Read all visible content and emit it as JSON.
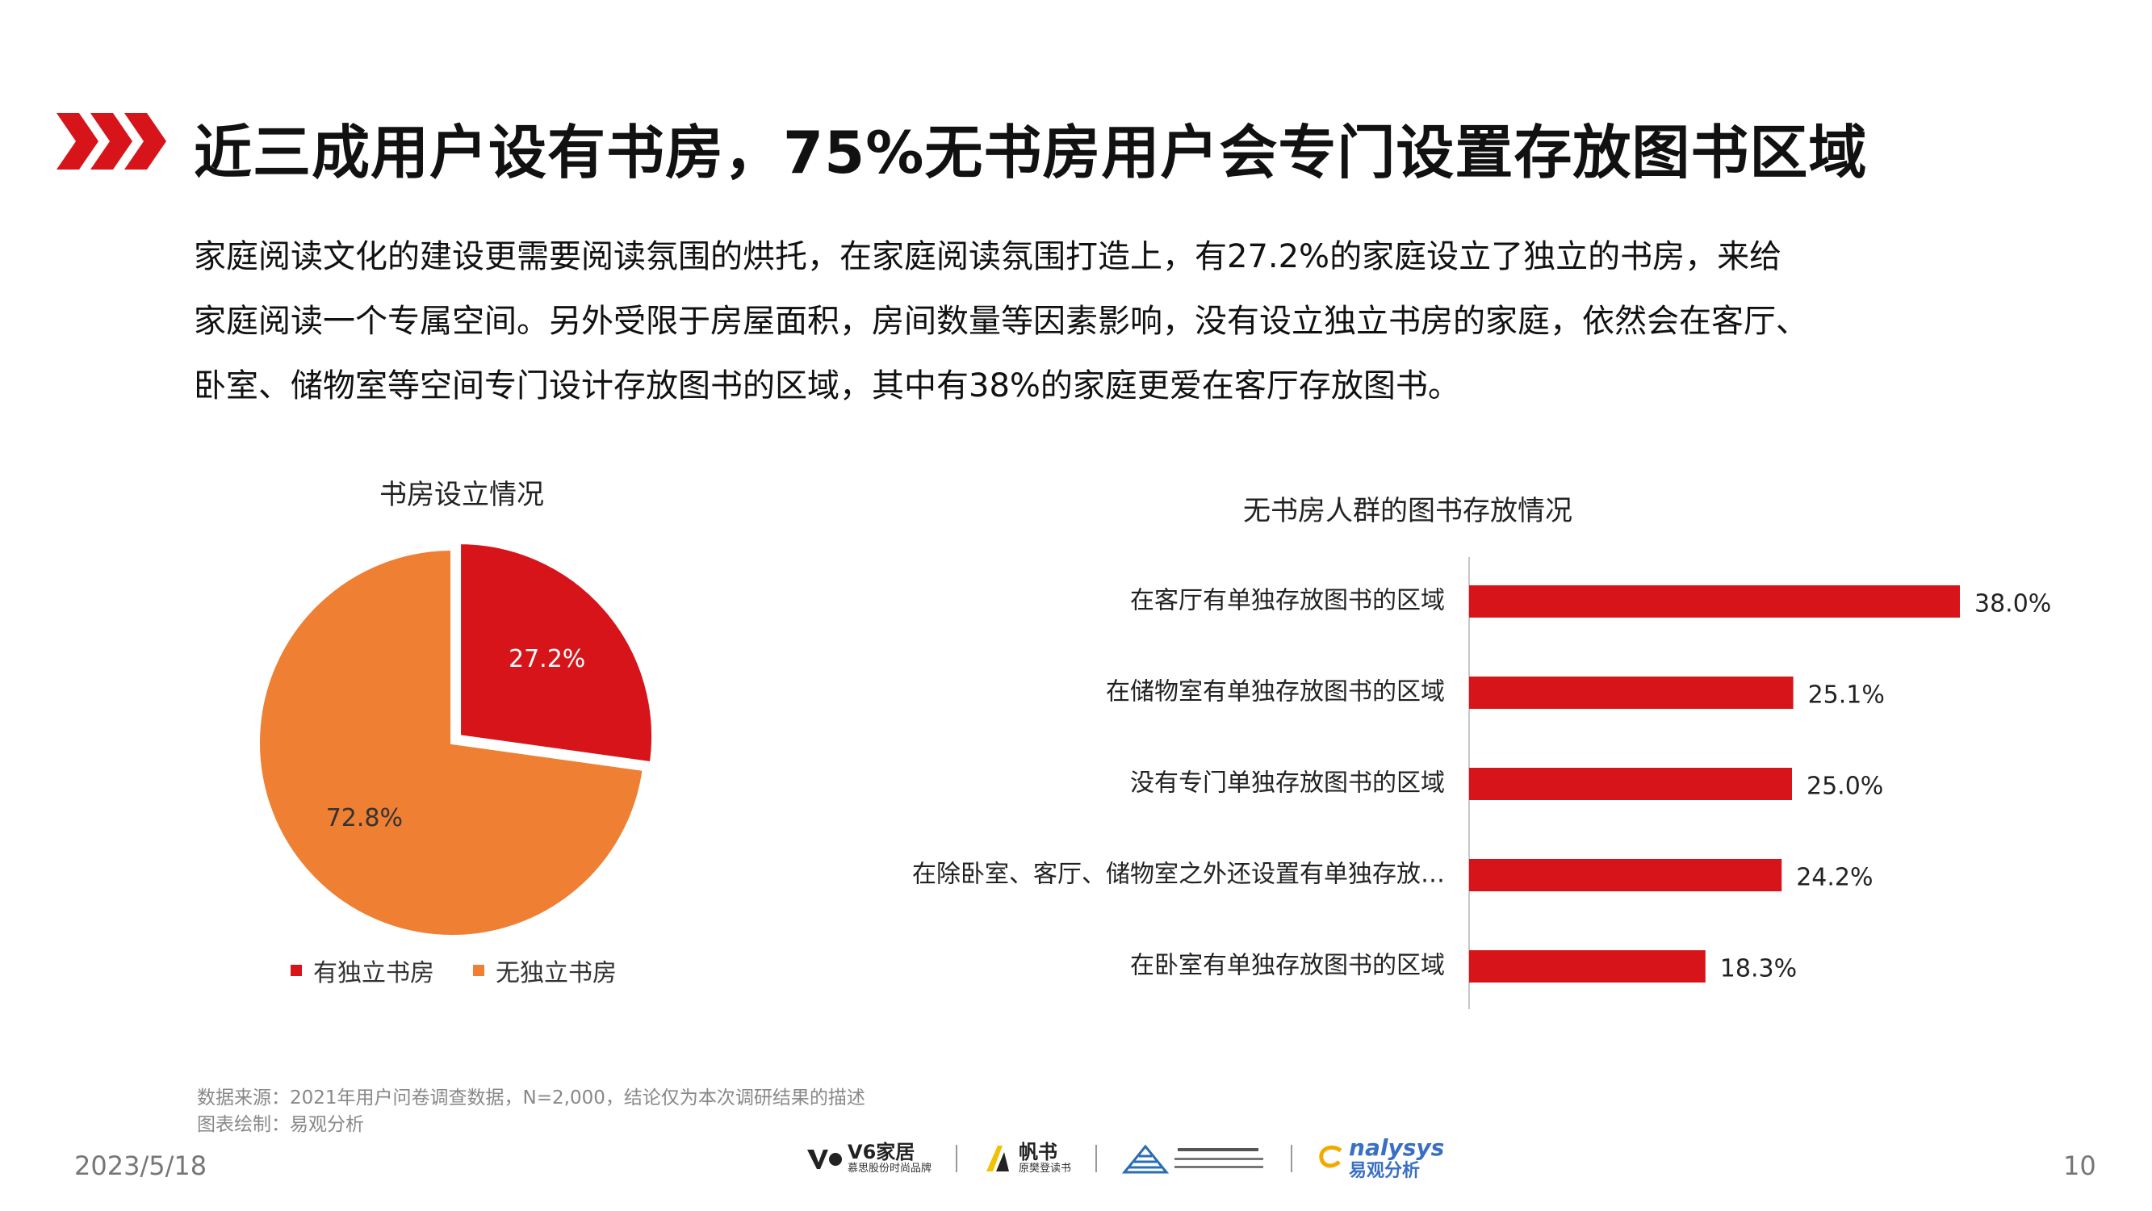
{
  "header": {
    "title": "近三成用户设有书房，75%无书房用户会专门设置存放图书区域",
    "accent_color": "#d7141a"
  },
  "intro": {
    "lines": [
      "家庭阅读文化的建设更需要阅读氛围的烘托，在家庭阅读氛围打造上，有27.2%的家庭设立了独立的书房，来给",
      "家庭阅读一个专属空间。另外受限于房屋面积，房间数量等因素影响，没有设立独立书房的家庭，依然会在客厅、",
      "卧室、储物室等空间专门设计存放图书的区域，其中有38%的家庭更爱在客厅存放图书。"
    ]
  },
  "chart_data": [
    {
      "type": "pie",
      "title": "书房设立情况",
      "labels": [
        "有独立书房",
        "无独立书房"
      ],
      "values": [
        27.2,
        72.8
      ],
      "data_labels": [
        "27.2%",
        "72.8%"
      ],
      "colors": [
        "#d7141a",
        "#ee7f33"
      ],
      "legend_position": "bottom",
      "exploded_slice": 0
    },
    {
      "type": "bar",
      "orientation": "horizontal",
      "title": "无书房人群的图书存放情况",
      "categories": [
        "在客厅有单独存放图书的区域",
        "在储物室有单独存放图书的区域",
        "没有专门单独存放图书的区域",
        "在除卧室、客厅、储物室之外还设置有单独存放…",
        "在卧室有单独存放图书的区域"
      ],
      "values": [
        38.0,
        25.1,
        25.0,
        24.2,
        18.3
      ],
      "data_labels": [
        "38.0%",
        "25.1%",
        "25.0%",
        "24.2%",
        "18.3%"
      ],
      "color": "#d7141a",
      "xlim": [
        0,
        40
      ],
      "grid": false
    }
  ],
  "footer": {
    "source": "数据来源：2021年用户问卷调查数据，N=2,000，结论仅为本次调研结果的描述",
    "drawn_by": "图表绘制：易观分析",
    "date": "2023/5/18",
    "page_number": "10",
    "logos": {
      "v6_name": "V6家居",
      "v6_sub": "慕思股份时尚品牌",
      "fanshu_name": "帆书",
      "fanshu_sub": "原樊登读书",
      "analysys_name": "nalysys",
      "analysys_sub": "易观分析"
    }
  }
}
